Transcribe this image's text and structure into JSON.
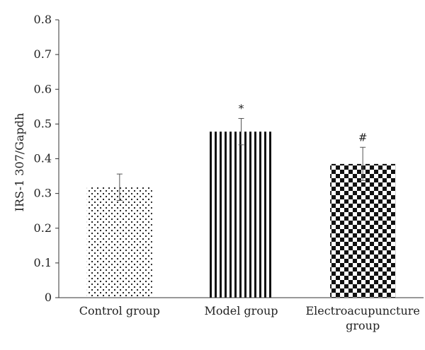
{
  "chart_data": {
    "type": "bar",
    "title": "",
    "xlabel": "",
    "ylabel": "IRS-1 307/Gapdh",
    "ylim": [
      0,
      0.8
    ],
    "yticks": [
      "0",
      "0.1",
      "0.2",
      "0.3",
      "0.4",
      "0.5",
      "0.6",
      "0.7",
      "0.8"
    ],
    "categories": [
      [
        "Control group"
      ],
      [
        "Model group"
      ],
      [
        "Electroacupuncture",
        "group"
      ]
    ],
    "values": [
      0.318,
      0.478,
      0.385
    ],
    "errors": [
      0.038,
      0.038,
      0.048
    ],
    "annotations": [
      "",
      "*",
      "#"
    ],
    "patterns": [
      "dots",
      "vertical-stripes",
      "checkerboard"
    ],
    "grid": false,
    "colors": {
      "ink": "#111111",
      "axis": "#333333",
      "text": "#222222",
      "background": "#ffffff"
    }
  }
}
